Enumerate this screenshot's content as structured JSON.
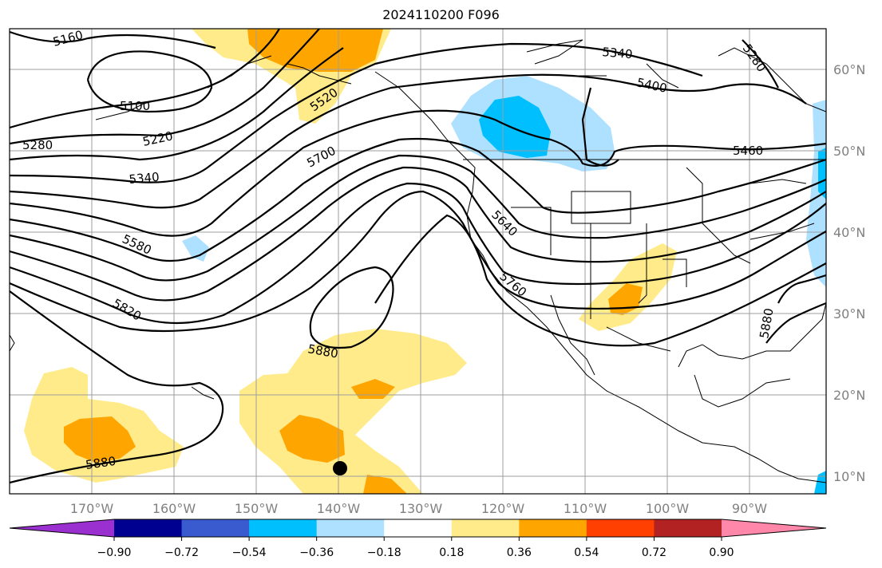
{
  "title": "2024110200 F096",
  "lon_labels": [
    "170°W",
    "160°W",
    "150°W",
    "140°W",
    "130°W",
    "120°W",
    "110°W",
    "100°W",
    "90°W"
  ],
  "lat_labels": [
    "60°N",
    "50°N",
    "40°N",
    "30°N",
    "20°N",
    "10°N"
  ],
  "contour_labels": [
    "5160",
    "5100",
    "5280",
    "5220",
    "5340",
    "5580",
    "5820",
    "5520",
    "5700",
    "5880",
    "5880",
    "5340",
    "5400",
    "5280",
    "5460",
    "5640",
    "5760",
    "5880"
  ],
  "colorbar": {
    "colors": [
      "#9b30d0",
      "#000090",
      "#3a5bd0",
      "#00bfff",
      "#aee0ff",
      "#ffffff",
      "#ffeb8a",
      "#ffa500",
      "#ff4000",
      "#b22222",
      "#ff88aa"
    ],
    "ticks": [
      "−0.90",
      "−0.72",
      "−0.54",
      "−0.36",
      "−0.18",
      "0.18",
      "0.36",
      "0.54",
      "0.72",
      "0.90"
    ]
  },
  "marker": "storm-center-dot"
}
